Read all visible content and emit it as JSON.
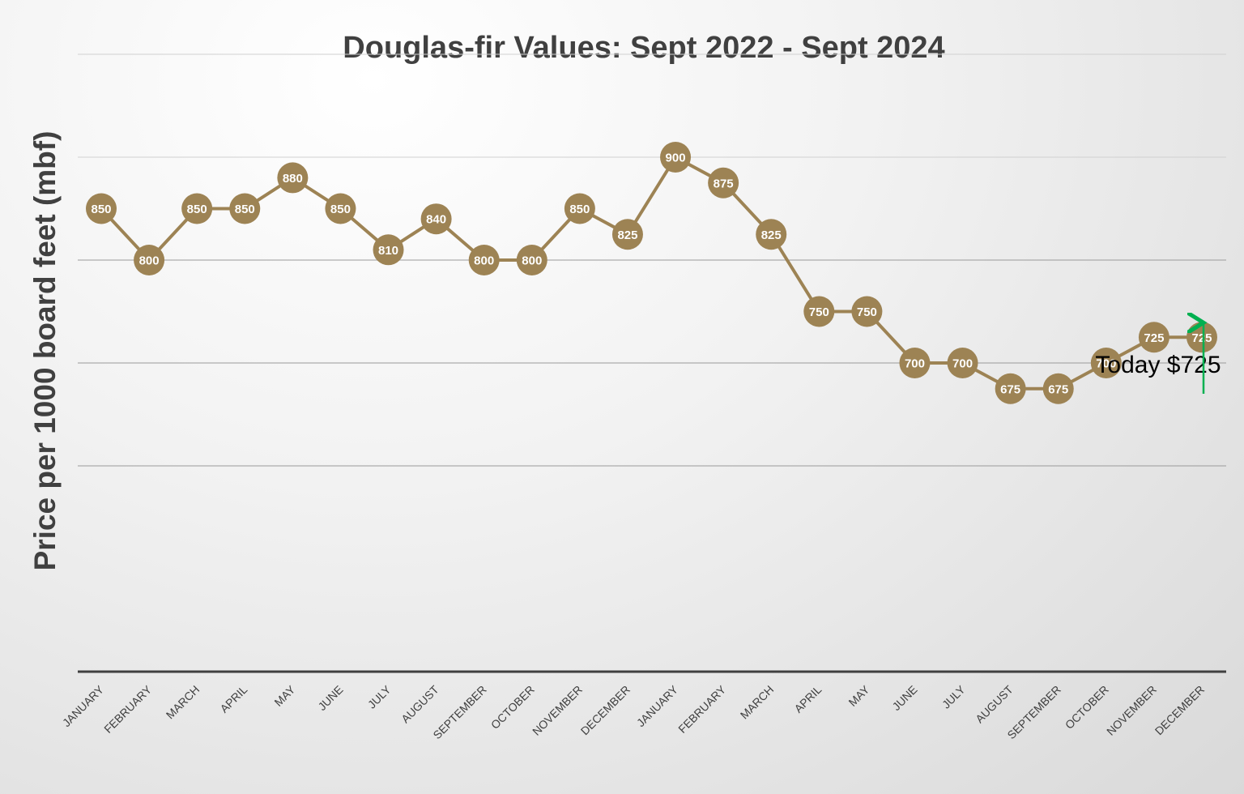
{
  "chart_data": {
    "type": "line",
    "title": "Douglas-fir Values: Sept 2022 - Sept 2024",
    "xlabel": "",
    "ylabel": "Price per 1000 board feet (mbf)",
    "categories": [
      "JANUARY",
      "FEBRUARY",
      "MARCH",
      "APRIL",
      "MAY",
      "JUNE",
      "JULY",
      "AUGUST",
      "SEPTEMBER",
      "OCTOBER",
      "NOVEMBER",
      "DECEMBER",
      "JANUARY",
      "FEBRUARY",
      "MARCH",
      "APRIL",
      "MAY",
      "JUNE",
      "JULY",
      "AUGUST",
      "SEPTEMBER",
      "OCTOBER",
      "NOVEMBER",
      "DECEMBER"
    ],
    "series": [
      {
        "values": [
          850,
          800,
          850,
          850,
          880,
          850,
          810,
          840,
          800,
          800,
          850,
          825,
          900,
          875,
          825,
          750,
          750,
          700,
          700,
          675,
          675,
          700,
          725,
          725
        ]
      }
    ],
    "ylim": [
      500,
      1000
    ],
    "gridlines": [
      600,
      700,
      800,
      900,
      1000
    ],
    "grid": true,
    "legend": "none",
    "annotation": {
      "text": "Today $725",
      "target_index": 23
    },
    "colors": {
      "line": "#9d8354",
      "marker": "#9d8354",
      "label": "#ffffff",
      "arrow": "#00b050",
      "grid": "#bfbfbf",
      "axis": "#404040"
    }
  }
}
